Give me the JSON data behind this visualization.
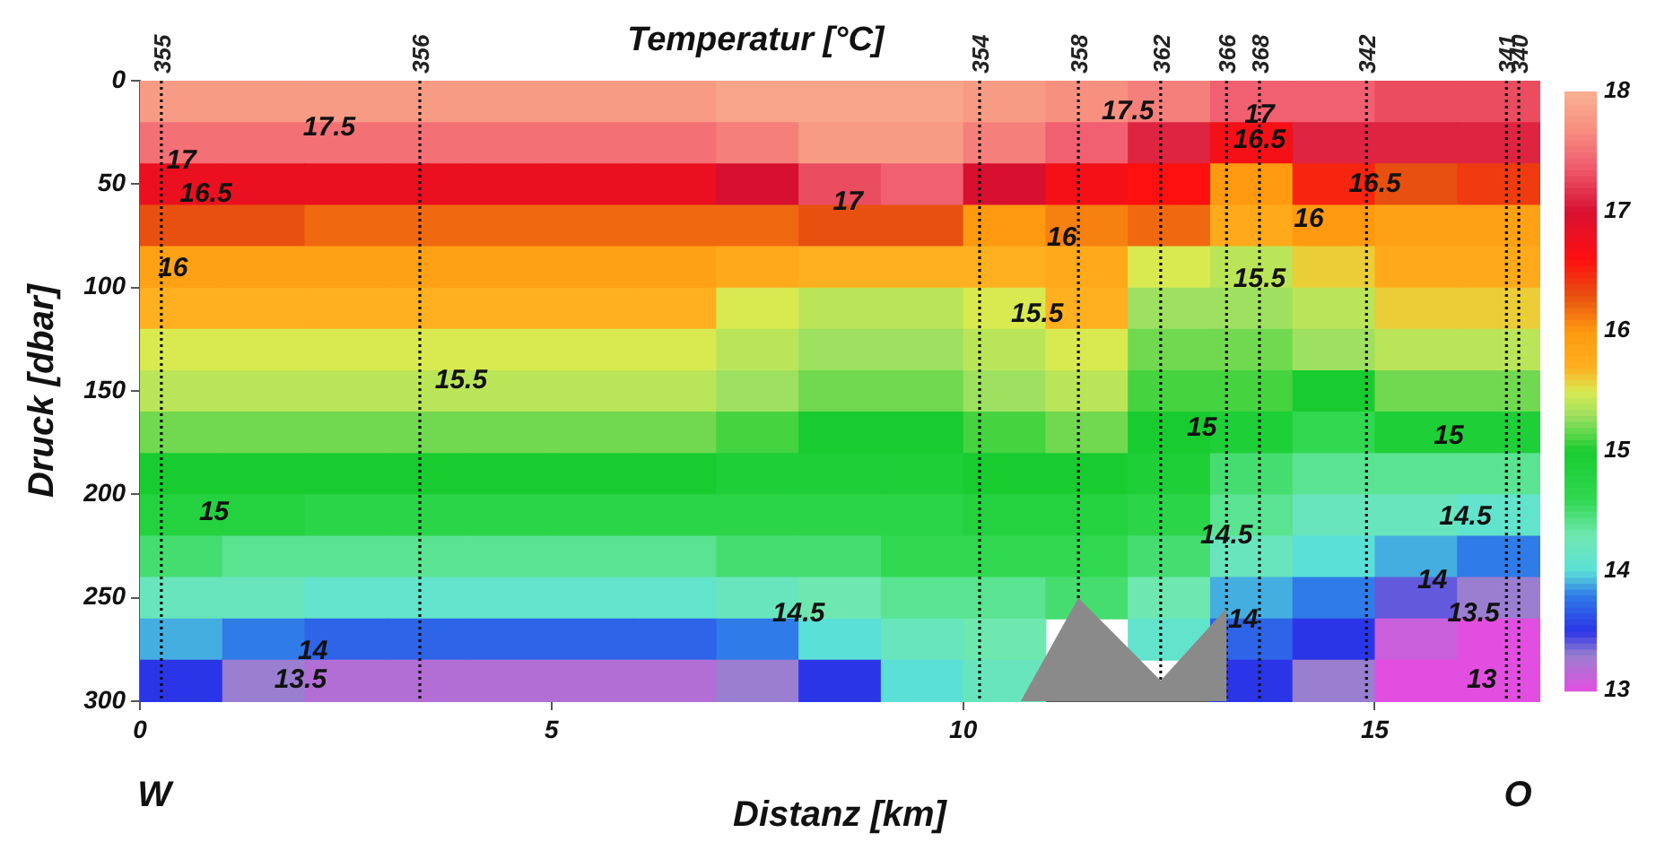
{
  "chart_data": {
    "type": "heatmap",
    "title": "Temperatur [°C]",
    "xlabel": "Distanz [km]",
    "ylabel": "Druck [dbar]",
    "x": [
      0.5,
      1.5,
      2.5,
      3.5,
      4.5,
      5.5,
      6.5,
      7.5,
      8.5,
      9.5,
      10.5,
      11.5,
      12.5,
      13.5,
      14.5,
      15.5,
      16.5
    ],
    "y": [
      10,
      30,
      50,
      70,
      90,
      110,
      130,
      150,
      170,
      190,
      210,
      230,
      250,
      270,
      290
    ],
    "cells": [
      [
        17.8,
        17.8,
        17.8,
        17.8,
        17.8,
        17.8,
        17.8,
        17.9,
        17.9,
        17.9,
        17.8,
        17.7,
        17.6,
        17.4,
        17.4,
        17.3,
        17.3
      ],
      [
        17.5,
        17.5,
        17.5,
        17.5,
        17.5,
        17.5,
        17.5,
        17.6,
        17.8,
        17.8,
        17.6,
        17.4,
        17.1,
        16.7,
        17.1,
        17.1,
        17.1
      ],
      [
        16.8,
        16.8,
        16.8,
        16.8,
        16.8,
        16.8,
        16.8,
        17.0,
        17.3,
        17.4,
        17.0,
        16.7,
        16.6,
        16.0,
        16.5,
        16.3,
        16.4
      ],
      [
        16.3,
        16.3,
        16.2,
        16.2,
        16.2,
        16.2,
        16.2,
        16.2,
        16.3,
        16.3,
        16.0,
        16.1,
        16.2,
        15.8,
        16.0,
        15.9,
        15.9
      ],
      [
        15.9,
        15.9,
        15.9,
        15.9,
        15.9,
        15.9,
        15.9,
        15.8,
        15.7,
        15.7,
        15.7,
        15.8,
        15.5,
        15.4,
        15.6,
        15.8,
        15.8
      ],
      [
        15.7,
        15.7,
        15.7,
        15.7,
        15.7,
        15.7,
        15.7,
        15.5,
        15.4,
        15.4,
        15.5,
        15.7,
        15.3,
        15.3,
        15.4,
        15.6,
        15.6
      ],
      [
        15.5,
        15.5,
        15.5,
        15.5,
        15.5,
        15.5,
        15.5,
        15.4,
        15.3,
        15.3,
        15.4,
        15.5,
        15.2,
        15.2,
        15.3,
        15.4,
        15.4
      ],
      [
        15.4,
        15.4,
        15.4,
        15.4,
        15.4,
        15.4,
        15.4,
        15.3,
        15.2,
        15.2,
        15.3,
        15.4,
        15.1,
        15.1,
        15.0,
        15.2,
        15.2
      ],
      [
        15.2,
        15.2,
        15.2,
        15.2,
        15.2,
        15.2,
        15.2,
        15.1,
        15.0,
        15.0,
        15.1,
        15.2,
        15.0,
        14.9,
        14.6,
        14.9,
        14.9
      ],
      [
        15.0,
        15.0,
        15.0,
        15.0,
        15.0,
        15.0,
        15.0,
        14.9,
        14.9,
        14.9,
        15.0,
        15.0,
        14.9,
        14.5,
        14.4,
        14.4,
        14.4
      ],
      [
        14.8,
        14.8,
        14.7,
        14.7,
        14.7,
        14.7,
        14.7,
        14.7,
        14.7,
        14.7,
        14.8,
        14.8,
        14.7,
        14.4,
        14.2,
        14.2,
        14.1
      ],
      [
        14.5,
        14.4,
        14.4,
        14.4,
        14.4,
        14.4,
        14.4,
        14.5,
        14.5,
        14.6,
        14.6,
        14.6,
        14.5,
        14.2,
        14.0,
        13.9,
        13.8
      ],
      [
        14.2,
        14.2,
        14.1,
        14.1,
        14.1,
        14.1,
        14.1,
        14.2,
        14.3,
        14.4,
        14.4,
        14.5,
        14.3,
        13.9,
        13.8,
        13.4,
        13.3
      ],
      [
        13.9,
        13.8,
        13.7,
        13.7,
        13.7,
        13.7,
        13.7,
        13.8,
        14.0,
        14.2,
        14.3,
        null,
        14.1,
        13.7,
        13.5,
        13.1,
        13.0
      ],
      [
        13.5,
        13.3,
        13.2,
        13.2,
        13.2,
        13.2,
        13.2,
        13.3,
        13.5,
        14.0,
        14.2,
        null,
        null,
        13.5,
        13.3,
        13.0,
        13.0
      ]
    ],
    "clim": [
      13,
      18
    ],
    "cticks": [
      13,
      14,
      15,
      16,
      17,
      18
    ],
    "xlim": [
      0,
      17
    ],
    "xticks": [
      0,
      5,
      10,
      15
    ],
    "ylim": [
      300,
      0
    ],
    "yticks": [
      0,
      50,
      100,
      150,
      200,
      250,
      300
    ],
    "ref_lines": [
      {
        "axis": "x",
        "value": 0.26,
        "line_style": "dotted"
      },
      {
        "axis": "x",
        "value": 3.4,
        "line_style": "dotted"
      },
      {
        "axis": "x",
        "value": 10.2,
        "line_style": "dotted"
      },
      {
        "axis": "x",
        "value": 11.4,
        "line_style": "dotted"
      },
      {
        "axis": "x",
        "value": 12.4,
        "line_style": "dotted"
      },
      {
        "axis": "x",
        "value": 13.2,
        "line_style": "dotted"
      },
      {
        "axis": "x",
        "value": 13.6,
        "line_style": "dotted"
      },
      {
        "axis": "x",
        "value": 14.9,
        "line_style": "dotted"
      },
      {
        "axis": "x",
        "value": 16.6,
        "line_style": "dotted"
      },
      {
        "axis": "x",
        "value": 16.75,
        "line_style": "dotted"
      }
    ],
    "annotations": [
      "W",
      "O",
      "355",
      "356",
      "354",
      "358",
      "362",
      "366",
      "368",
      "342",
      "341",
      "340",
      "17.5",
      "17",
      "16.5",
      "16",
      "15.5",
      "15",
      "14.5",
      "14",
      "13.5",
      "17.5",
      "17",
      "17",
      "16.5",
      "16.5",
      "16",
      "16",
      "15.5",
      "15.5",
      "15",
      "15",
      "14.5",
      "14.5",
      "14",
      "14",
      "13.5",
      "13"
    ]
  }
}
